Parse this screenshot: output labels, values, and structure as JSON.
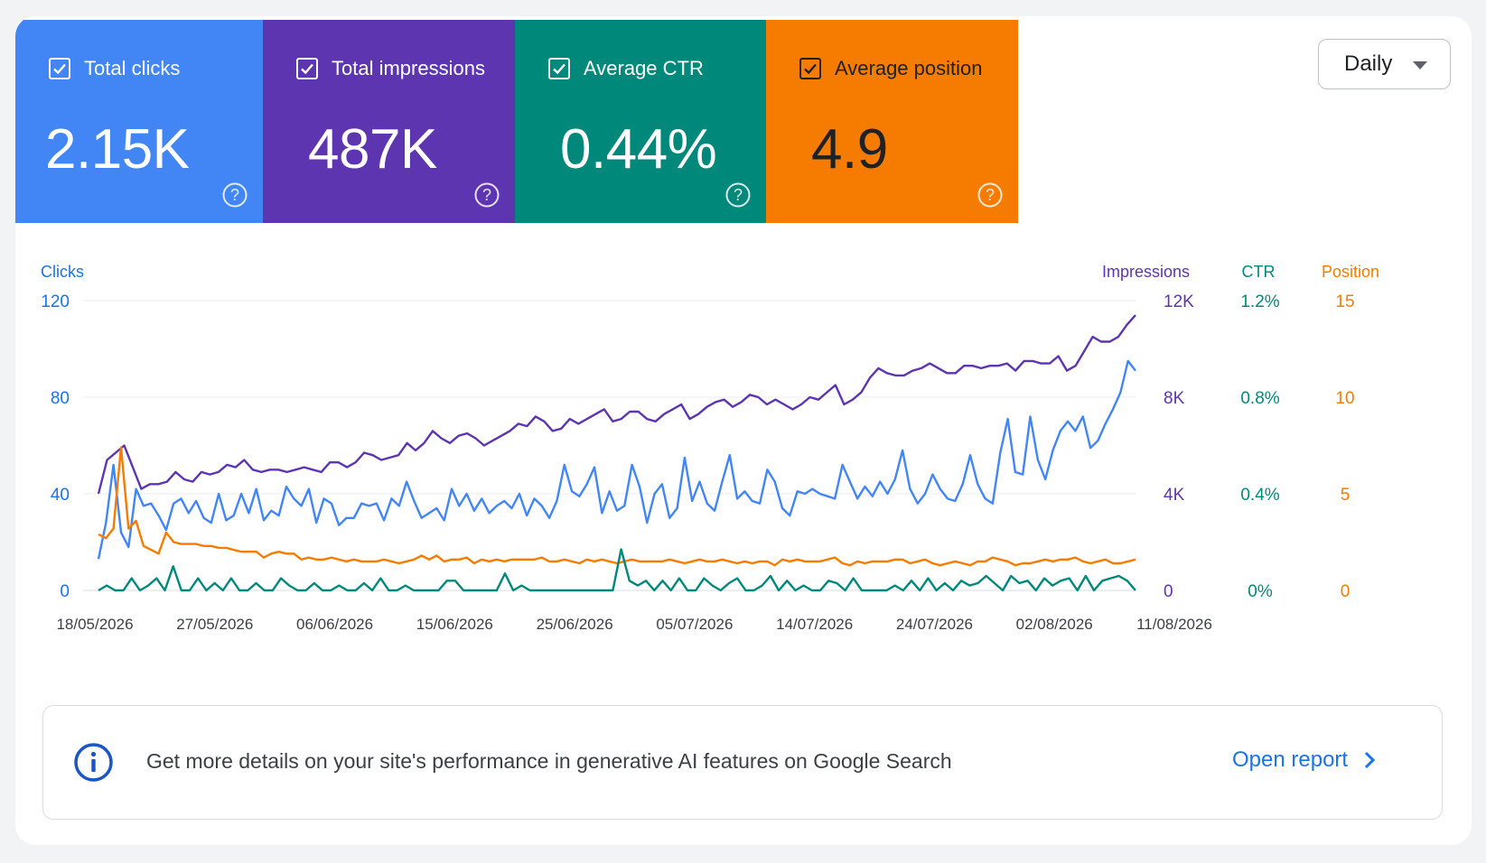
{
  "metrics": {
    "clicks": {
      "label": "Total clicks",
      "value": "2.15K",
      "color": "#4285f4",
      "checked": true
    },
    "impressions": {
      "label": "Total impressions",
      "value": "487K",
      "color": "#5e35b1",
      "checked": true
    },
    "ctr": {
      "label": "Average CTR",
      "value": "0.44%",
      "color": "#00897b",
      "checked": true
    },
    "position": {
      "label": "Average position",
      "value": "4.9",
      "color": "#f57c00",
      "checked": true
    }
  },
  "period_select": {
    "selected": "Daily"
  },
  "banner": {
    "icon": "info-icon",
    "text": "Get more details on your site's performance in generative AI features on Google Search",
    "link": "Open report"
  },
  "chart_data": {
    "type": "line",
    "x_ticks": [
      "18/05/2026",
      "27/05/2026",
      "06/06/2026",
      "15/06/2026",
      "25/06/2026",
      "05/07/2026",
      "14/07/2026",
      "24/07/2026",
      "02/08/2026",
      "11/08/2026"
    ],
    "x_range": [
      "18/05/2026",
      "11/08/2026"
    ],
    "grid": true,
    "axes": {
      "clicks": {
        "title": "Clicks",
        "ticks": [
          "120",
          "80",
          "40",
          "0"
        ],
        "range": [
          0,
          120
        ],
        "color": "#1a73e8"
      },
      "impressions": {
        "title": "Impressions",
        "ticks": [
          "12K",
          "8K",
          "4K",
          "0"
        ],
        "range": [
          0,
          12000
        ],
        "color": "#5e35b1"
      },
      "ctr": {
        "title": "CTR",
        "ticks": [
          "1.2%",
          "0.8%",
          "0.4%",
          "0%"
        ],
        "range": [
          0,
          1.2
        ],
        "color": "#00897b"
      },
      "position": {
        "title": "Position",
        "ticks": [
          "15",
          "10",
          "5",
          "0"
        ],
        "range": [
          0,
          15
        ],
        "color": "#f57c00"
      }
    },
    "series": [
      {
        "name": "Impressions",
        "axis": "impressions",
        "color": "#5e35b1",
        "values": [
          4000,
          5400,
          5700,
          6000,
          5100,
          4200,
          4400,
          4400,
          4500,
          4900,
          4600,
          4500,
          4900,
          4800,
          4900,
          5200,
          5100,
          5400,
          5000,
          4900,
          5000,
          5000,
          4900,
          5000,
          5100,
          5000,
          4900,
          5300,
          5300,
          5100,
          5300,
          5700,
          5600,
          5400,
          5500,
          5600,
          6100,
          5800,
          6100,
          6600,
          6300,
          6100,
          6400,
          6500,
          6300,
          6000,
          6200,
          6400,
          6600,
          6900,
          6800,
          7200,
          7000,
          6600,
          6700,
          7100,
          6900,
          7100,
          7300,
          7500,
          7000,
          7100,
          7400,
          7400,
          7100,
          7000,
          7300,
          7500,
          7700,
          7100,
          7300,
          7600,
          7800,
          7900,
          7600,
          7800,
          8100,
          8000,
          7700,
          7900,
          7700,
          7500,
          7700,
          8000,
          7900,
          8200,
          8500,
          7700,
          7900,
          8200,
          8800,
          9200,
          9000,
          8900,
          8900,
          9100,
          9200,
          9400,
          9200,
          9000,
          9000,
          9300,
          9300,
          9200,
          9300,
          9300,
          9400,
          9100,
          9500,
          9500,
          9400,
          9400,
          9700,
          9100,
          9300,
          9900,
          10500,
          10300,
          10300,
          10500,
          11000,
          11400
        ]
      },
      {
        "name": "Clicks",
        "axis": "clicks",
        "color": "#4285f4",
        "values": [
          13,
          28,
          52,
          24,
          18,
          42,
          35,
          36,
          31,
          25,
          36,
          38,
          32,
          37,
          30,
          28,
          40,
          29,
          31,
          40,
          32,
          42,
          29,
          33,
          31,
          43,
          38,
          35,
          42,
          28,
          38,
          36,
          27,
          30,
          30,
          36,
          35,
          36,
          29,
          38,
          35,
          45,
          37,
          30,
          32,
          34,
          29,
          42,
          35,
          40,
          33,
          38,
          32,
          35,
          37,
          34,
          40,
          31,
          38,
          35,
          30,
          37,
          52,
          41,
          39,
          44,
          51,
          32,
          41,
          33,
          35,
          52,
          43,
          28,
          40,
          44,
          30,
          34,
          55,
          37,
          45,
          36,
          33,
          45,
          56,
          38,
          41,
          37,
          36,
          50,
          45,
          34,
          31,
          41,
          40,
          42,
          40,
          39,
          38,
          52,
          45,
          38,
          43,
          39,
          45,
          40,
          46,
          58,
          42,
          36,
          40,
          48,
          42,
          38,
          37,
          44,
          56,
          44,
          38,
          36,
          57,
          71,
          49,
          48,
          72,
          54,
          46,
          58,
          66,
          70,
          66,
          72,
          59,
          62,
          69,
          75,
          82,
          95,
          91
        ]
      },
      {
        "name": "Position",
        "axis": "position",
        "color": "#f57c00",
        "values": [
          2.9,
          2.7,
          3.2,
          7.4,
          3.2,
          3.6,
          2.3,
          2.1,
          1.9,
          3.0,
          2.5,
          2.4,
          2.4,
          2.4,
          2.3,
          2.3,
          2.2,
          2.2,
          2.1,
          2.0,
          2.0,
          2.0,
          1.7,
          1.9,
          2.0,
          1.9,
          1.9,
          1.6,
          1.7,
          1.6,
          1.6,
          1.7,
          1.6,
          1.5,
          1.6,
          1.5,
          1.5,
          1.5,
          1.6,
          1.5,
          1.4,
          1.5,
          1.6,
          1.8,
          1.6,
          1.8,
          1.5,
          1.6,
          1.6,
          1.7,
          1.4,
          1.6,
          1.5,
          1.6,
          1.5,
          1.6,
          1.6,
          1.6,
          1.6,
          1.7,
          1.5,
          1.5,
          1.6,
          1.5,
          1.4,
          1.6,
          1.5,
          1.6,
          1.5,
          1.4,
          1.5,
          1.6,
          1.5,
          1.5,
          1.5,
          1.5,
          1.6,
          1.5,
          1.4,
          1.5,
          1.6,
          1.5,
          1.5,
          1.6,
          1.5,
          1.4,
          1.5,
          1.4,
          1.5,
          1.5,
          1.3,
          1.6,
          1.5,
          1.6,
          1.5,
          1.5,
          1.5,
          1.6,
          1.7,
          1.4,
          1.3,
          1.5,
          1.4,
          1.5,
          1.5,
          1.5,
          1.6,
          1.6,
          1.4,
          1.5,
          1.6,
          1.4,
          1.3,
          1.4,
          1.5,
          1.4,
          1.3,
          1.5,
          1.5,
          1.7,
          1.6,
          1.5,
          1.3,
          1.4,
          1.4,
          1.5,
          1.6,
          1.5,
          1.6,
          1.6,
          1.7,
          1.5,
          1.4,
          1.5,
          1.6,
          1.4,
          1.4,
          1.5,
          1.6
        ]
      },
      {
        "name": "CTR",
        "axis": "ctr",
        "color": "#00897b",
        "values": [
          0.0,
          0.02,
          0.0,
          0.0,
          0.05,
          0.0,
          0.02,
          0.05,
          0.0,
          0.1,
          0.0,
          0.0,
          0.05,
          0.0,
          0.03,
          0.0,
          0.05,
          0.0,
          0.0,
          0.03,
          0.0,
          0.0,
          0.05,
          0.02,
          0.0,
          0.0,
          0.03,
          0.0,
          0.0,
          0.02,
          0.0,
          0.0,
          0.03,
          0.0,
          0.05,
          0.0,
          0.0,
          0.02,
          0.0,
          0.0,
          0.0,
          0.0,
          0.04,
          0.04,
          0.0,
          0.0,
          0.0,
          0.0,
          0.0,
          0.07,
          0.0,
          0.02,
          0.0,
          0.0,
          0.0,
          0.0,
          0.0,
          0.0,
          0.0,
          0.0,
          0.0,
          0.0,
          0.0,
          0.17,
          0.04,
          0.02,
          0.04,
          0.0,
          0.04,
          0.0,
          0.05,
          0.0,
          0.0,
          0.05,
          0.02,
          0.0,
          0.03,
          0.05,
          0.0,
          0.0,
          0.02,
          0.06,
          0.0,
          0.04,
          0.0,
          0.02,
          0.0,
          0.0,
          0.04,
          0.03,
          0.0,
          0.05,
          0.0,
          0.0,
          0.0,
          0.0,
          0.02,
          0.0,
          0.04,
          0.0,
          0.05,
          0.0,
          0.03,
          0.0,
          0.04,
          0.02,
          0.03,
          0.06,
          0.03,
          0.0,
          0.06,
          0.03,
          0.04,
          0.0,
          0.05,
          0.02,
          0.04,
          0.05,
          0.0,
          0.06,
          0.0,
          0.04,
          0.05,
          0.06,
          0.04,
          0.0
        ]
      }
    ]
  }
}
